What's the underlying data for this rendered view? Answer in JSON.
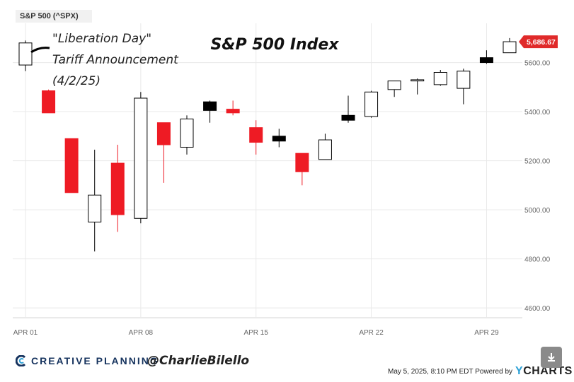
{
  "ticker": "S&P 500 (^SPX)",
  "annotation": [
    "\"Liberation Day\"",
    "Tariff Announcement",
    "(4/2/25)"
  ],
  "colors": {
    "up": "#ffffff",
    "down": "#ee1b24",
    "doji": "#000000",
    "price_tag": "#e02a2a",
    "grid": "#e9e9e9"
  },
  "chart_data": {
    "type": "candlestick",
    "title": "S&P 500 Index",
    "ylim": [
      4560,
      5760
    ],
    "y_ticks": [
      "4600.00",
      "4800.00",
      "5000.00",
      "5200.00",
      "5400.00",
      "5600.00"
    ],
    "x_ticks": [
      "APR 01",
      "APR 08",
      "APR 15",
      "APR 22",
      "APR 29"
    ],
    "last_price": "5,686.67",
    "candles": [
      {
        "date": "2025-04-01",
        "open": 5590,
        "high": 5690,
        "low": 5565,
        "close": 5680,
        "color": "up"
      },
      {
        "date": "2025-04-02",
        "open": 5485,
        "high": 5490,
        "low": 5395,
        "close": 5395,
        "color": "down"
      },
      {
        "date": "2025-04-03",
        "open": 5290,
        "high": 5290,
        "low": 5070,
        "close": 5070,
        "color": "down"
      },
      {
        "date": "2025-04-04",
        "open": 4950,
        "high": 5245,
        "low": 4830,
        "close": 5060,
        "color": "up"
      },
      {
        "date": "2025-04-07",
        "open": 5190,
        "high": 5265,
        "low": 4910,
        "close": 4980,
        "color": "down"
      },
      {
        "date": "2025-04-08",
        "open": 4965,
        "high": 5480,
        "low": 4945,
        "close": 5455,
        "color": "up"
      },
      {
        "date": "2025-04-09",
        "open": 5355,
        "high": 5355,
        "low": 5110,
        "close": 5265,
        "color": "down"
      },
      {
        "date": "2025-04-10",
        "open": 5255,
        "high": 5385,
        "low": 5225,
        "close": 5370,
        "color": "up"
      },
      {
        "date": "2025-04-11",
        "open": 5405,
        "high": 5445,
        "low": 5355,
        "close": 5440,
        "color": "doji"
      },
      {
        "date": "2025-04-14",
        "open": 5410,
        "high": 5445,
        "low": 5385,
        "close": 5395,
        "color": "down"
      },
      {
        "date": "2025-04-15",
        "open": 5335,
        "high": 5365,
        "low": 5225,
        "close": 5275,
        "color": "down"
      },
      {
        "date": "2025-04-16",
        "open": 5280,
        "high": 5330,
        "low": 5255,
        "close": 5300,
        "color": "doji"
      },
      {
        "date": "2025-04-17",
        "open": 5230,
        "high": 5230,
        "low": 5100,
        "close": 5155,
        "color": "down"
      },
      {
        "date": "2025-04-18",
        "open": 5205,
        "high": 5310,
        "low": 5205,
        "close": 5285,
        "color": "up"
      },
      {
        "date": "2025-04-21",
        "open": 5365,
        "high": 5465,
        "low": 5355,
        "close": 5385,
        "color": "doji"
      },
      {
        "date": "2025-04-22",
        "open": 5380,
        "high": 5485,
        "low": 5375,
        "close": 5480,
        "color": "up"
      },
      {
        "date": "2025-04-23",
        "open": 5490,
        "high": 5525,
        "low": 5460,
        "close": 5525,
        "color": "up"
      },
      {
        "date": "2025-04-24",
        "open": 5525,
        "high": 5535,
        "low": 5470,
        "close": 5530,
        "color": "up"
      },
      {
        "date": "2025-04-25",
        "open": 5510,
        "high": 5570,
        "low": 5505,
        "close": 5560,
        "color": "up"
      },
      {
        "date": "2025-04-28",
        "open": 5495,
        "high": 5575,
        "low": 5430,
        "close": 5565,
        "color": "up"
      },
      {
        "date": "2025-04-29",
        "open": 5600,
        "high": 5650,
        "low": 5595,
        "close": 5620,
        "color": "doji"
      },
      {
        "date": "2025-04-30",
        "open": 5640,
        "high": 5700,
        "low": 5640,
        "close": 5685,
        "color": "up"
      }
    ]
  },
  "footer": {
    "brand": "CREATIVE PLANNING",
    "handle": "@CharlieBilello",
    "timestamp": "May 5, 2025, 8:10 PM EDT Powered by",
    "ycharts_y": "Y",
    "ycharts_rest": "CHARTS"
  }
}
